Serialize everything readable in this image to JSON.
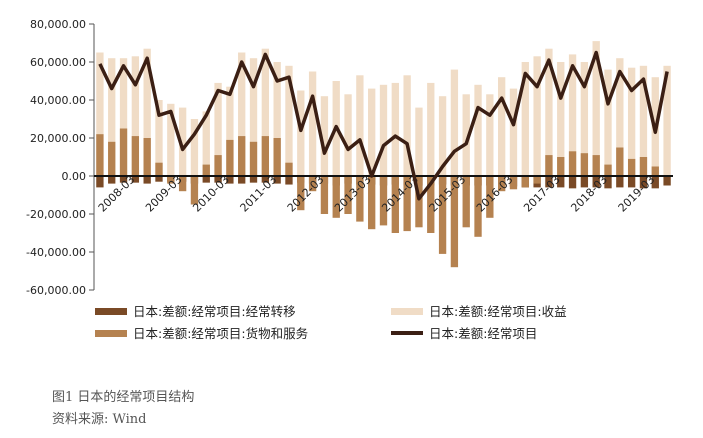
{
  "chart_data": {
    "type": "bar",
    "yticks": [
      "80,000.00",
      "60,000.00",
      "40,000.00",
      "20,000.00",
      "0.00",
      "-20,000.00",
      "-40,000.00",
      "-60,000.00"
    ],
    "ylim": [
      -60000,
      80000
    ],
    "grid": false,
    "x_tick_labels": [
      "2008-03",
      "2009-03",
      "2010-03",
      "2011-03",
      "2012-03",
      "2013-03",
      "2014-03",
      "2015-03",
      "2016-03",
      "2017-03",
      "2018-03",
      "2019-03"
    ],
    "x_tick_positions": [
      3,
      7,
      11,
      15,
      19,
      23,
      27,
      31,
      35,
      39,
      43,
      47
    ],
    "legend_position": "bottom",
    "series": [
      {
        "name": "日本:差额:经常项目:经常转移",
        "type": "bar",
        "color": "#7a4a26",
        "values": [
          -6000,
          -4000,
          -3500,
          -3500,
          -4000,
          -3000,
          -3000,
          -3000,
          -4000,
          -3500,
          -3500,
          -4000,
          -4000,
          -3500,
          -3500,
          -4000,
          -4500,
          -3500,
          -4000,
          -4000,
          -5000,
          -4000,
          -4500,
          -4500,
          -5000,
          -4500,
          -5000,
          -5000,
          -5000,
          -4500,
          -5000,
          -5000,
          -5000,
          -5000,
          -5500,
          -5500,
          -6000,
          -6000,
          -6000,
          -6000,
          -6500,
          -6000,
          -6000,
          -6500,
          -6000,
          -6000,
          -6500,
          -6500,
          -5000
        ]
      },
      {
        "name": "日本:差额:经常项目:货物和服务",
        "type": "bar",
        "color": "#b58250",
        "values": [
          22000,
          18000,
          25000,
          21000,
          20000,
          7000,
          -4000,
          -8000,
          -15000,
          6000,
          11000,
          19000,
          21000,
          18000,
          21000,
          20000,
          7000,
          -18000,
          -8000,
          -20000,
          -22000,
          -20000,
          -24000,
          -28000,
          -26000,
          -30000,
          -29000,
          -27000,
          -30000,
          -41000,
          -48000,
          -27000,
          -32000,
          -22000,
          -8000,
          -7000,
          -6000,
          -4000,
          11000,
          10000,
          13000,
          12000,
          11000,
          6000,
          15000,
          9000,
          10000,
          5000,
          0
        ]
      },
      {
        "name": "日本:差额:经常项目:收益",
        "type": "bar",
        "color": "#f0dcc6",
        "values": [
          65000,
          62000,
          62000,
          63000,
          67000,
          40000,
          38000,
          36000,
          30000,
          34000,
          49000,
          47000,
          65000,
          62000,
          67000,
          60000,
          58000,
          45000,
          55000,
          42000,
          50000,
          43000,
          53000,
          46000,
          48000,
          49000,
          53000,
          36000,
          49000,
          42000,
          56000,
          43000,
          48000,
          43000,
          52000,
          46000,
          60000,
          63000,
          67000,
          60000,
          64000,
          60000,
          71000,
          56000,
          62000,
          57000,
          58000,
          52000,
          58000
        ]
      },
      {
        "name": "日本:差额:经常项目",
        "type": "line",
        "color": "#3b1f14",
        "values": [
          59000,
          46000,
          58000,
          48000,
          62000,
          32000,
          34000,
          14000,
          22000,
          32000,
          45000,
          43000,
          60000,
          47000,
          64000,
          50000,
          52000,
          24000,
          42000,
          12000,
          26000,
          14000,
          19000,
          0,
          16000,
          21000,
          17000,
          -12000,
          -4000,
          5000,
          13000,
          17000,
          36000,
          32000,
          41000,
          27000,
          54000,
          47000,
          61000,
          41000,
          58000,
          47000,
          65000,
          38000,
          55000,
          45000,
          51000,
          23000,
          55000
        ]
      }
    ]
  },
  "caption": {
    "title": "图1  日本的经常项目结构",
    "source": "资料来源: Wind"
  }
}
